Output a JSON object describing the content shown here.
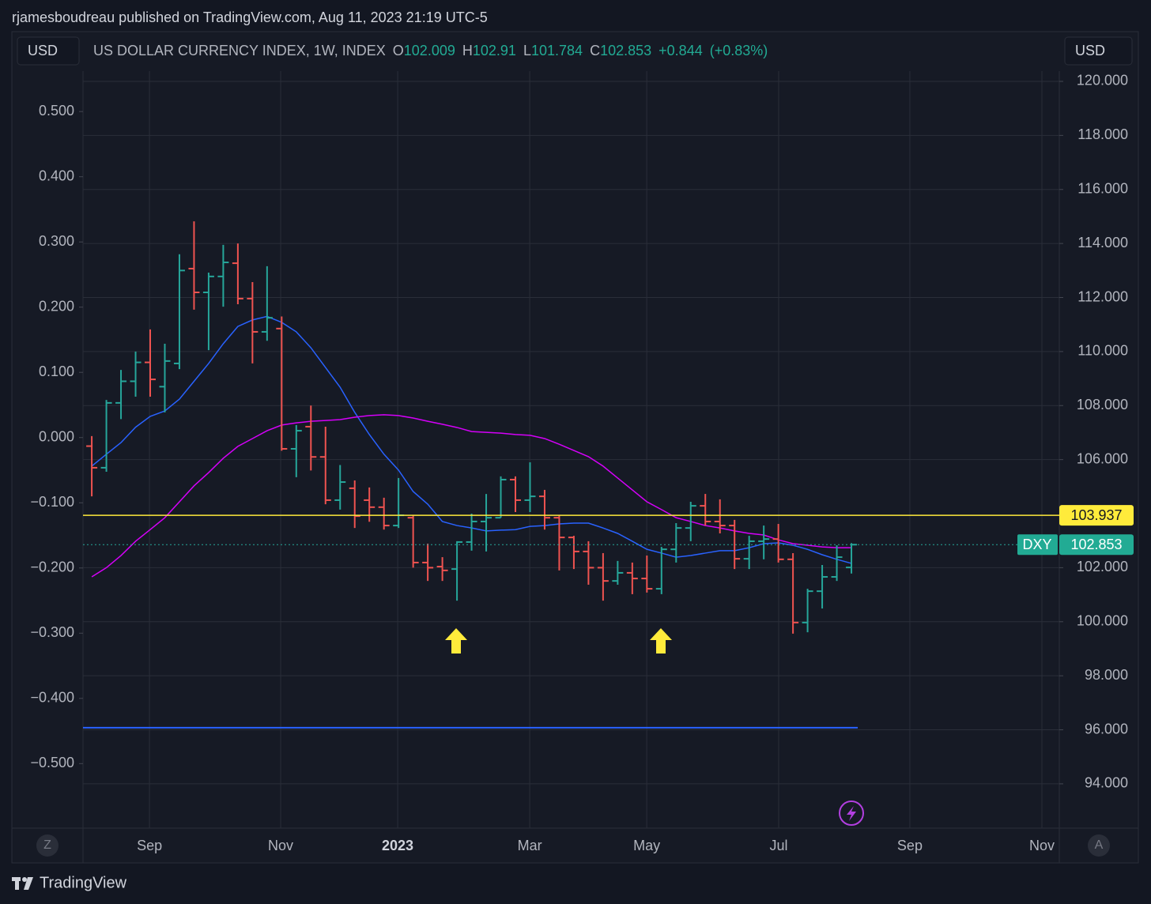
{
  "page": {
    "author_line": "rjamesboudreau published on TradingView.com, Aug 11, 2023 21:19 UTC-5",
    "currency_left": "USD",
    "currency_right": "USD",
    "scale_left_button": "Z",
    "scale_right_button": "A",
    "brand": "TradingView"
  },
  "chart_data": {
    "type": "ohlc",
    "title": "US DOLLAR CURRENCY INDEX, 1W, INDEX",
    "symbol": "DXY",
    "ohlc_letters": [
      "O",
      "H",
      "L",
      "C"
    ],
    "change_label": "+0.844",
    "change_pct_label": "(+0.83%)",
    "up_color": "#26a69a",
    "down_color": "#ef5350",
    "categories": [
      null,
      null,
      null,
      null,
      null,
      null,
      null,
      null,
      null,
      null,
      null,
      null,
      null,
      null,
      null,
      null,
      null,
      null,
      null,
      null,
      null,
      null,
      null,
      null,
      null,
      null,
      null,
      null,
      null,
      null,
      null,
      null,
      null,
      null,
      null,
      null,
      null,
      null,
      null,
      null,
      null,
      null,
      null,
      null,
      null,
      null,
      null,
      null,
      null,
      null,
      null,
      null,
      null
    ],
    "open": [
      106.5,
      105.7,
      108.1,
      108.9,
      109.6,
      108.7,
      109.56,
      113.07,
      112.19,
      112.78,
      113.27,
      111.96,
      110.73,
      110.85,
      106.4,
      107.22,
      106.1,
      104.5,
      104.94,
      104.5,
      104.24,
      103.56,
      103.85,
      102.19,
      102.04,
      101.95,
      102.95,
      103.71,
      103.85,
      105.26,
      104.5,
      104.64,
      103.85,
      103.12,
      102.6,
      102.0,
      101.51,
      101.81,
      101.6,
      101.22,
      102.68,
      103.47,
      104.29,
      103.71,
      103.56,
      102.33,
      102.98,
      103.06,
      102.31,
      99.97,
      101.13,
      101.66,
      102.009
    ],
    "high": [
      106.87,
      108.21,
      109.32,
      110.0,
      110.82,
      110.29,
      113.6,
      114.82,
      112.92,
      113.95,
      114.0,
      112.57,
      113.16,
      111.3,
      107.28,
      108.0,
      107.22,
      105.8,
      105.23,
      104.97,
      104.59,
      105.32,
      103.94,
      102.89,
      102.39,
      102.98,
      104.0,
      104.73,
      105.38,
      105.38,
      105.9,
      104.88,
      103.94,
      103.18,
      102.98,
      102.54,
      102.25,
      102.19,
      102.45,
      102.77,
      103.65,
      104.44,
      104.73,
      104.53,
      103.77,
      103.18,
      103.56,
      103.62,
      102.54,
      101.22,
      102.1,
      102.83,
      102.91
    ],
    "low": [
      104.64,
      105.55,
      107.5,
      108.33,
      108.33,
      107.75,
      109.35,
      111.55,
      110.05,
      111.66,
      111.75,
      109.56,
      110.4,
      106.33,
      105.35,
      105.6,
      104.35,
      104.15,
      103.47,
      103.7,
      103.41,
      103.47,
      102.0,
      101.51,
      101.51,
      100.78,
      102.63,
      102.6,
      103.85,
      104.06,
      104.06,
      103.41,
      101.9,
      101.95,
      101.37,
      100.78,
      101.37,
      101.02,
      101.08,
      101.02,
      102.19,
      102.98,
      103.56,
      103.27,
      101.95,
      101.95,
      102.31,
      102.19,
      99.56,
      99.61,
      100.49,
      101.51,
      101.784
    ],
    "close": [
      105.7,
      108.1,
      108.9,
      109.6,
      108.97,
      109.65,
      113.0,
      112.19,
      112.78,
      113.3,
      111.96,
      110.73,
      111.25,
      106.4,
      107.07,
      106.1,
      104.5,
      105.17,
      103.91,
      104.24,
      103.56,
      103.94,
      102.19,
      102.0,
      101.9,
      102.95,
      103.71,
      103.85,
      105.26,
      104.5,
      104.64,
      103.85,
      103.12,
      102.6,
      102.0,
      101.51,
      101.81,
      101.6,
      101.22,
      102.68,
      103.47,
      104.29,
      103.71,
      103.56,
      102.33,
      102.98,
      103.06,
      102.31,
      99.97,
      101.13,
      101.66,
      102.39,
      102.853
    ],
    "series": [
      {
        "color": "#2962ff",
        "values": [
          105.76,
          106.2,
          106.63,
          107.2,
          107.6,
          107.8,
          108.24,
          108.9,
          109.56,
          110.29,
          110.93,
          111.17,
          111.3,
          111.08,
          110.73,
          110.14,
          109.41,
          108.68,
          107.75,
          106.93,
          106.2,
          105.61,
          104.82,
          104.35,
          103.71,
          103.56,
          103.47,
          103.36,
          103.39,
          103.41,
          103.53,
          103.56,
          103.62,
          103.65,
          103.65,
          103.47,
          103.27,
          102.98,
          102.68,
          102.54,
          102.39,
          102.45,
          102.54,
          102.63,
          102.63,
          102.74,
          102.89,
          102.92,
          102.83,
          102.68,
          102.48,
          102.31,
          102.16
        ]
      },
      {
        "color": "#d500f9",
        "values": [
          101.66,
          102.0,
          102.45,
          102.98,
          103.41,
          103.85,
          104.44,
          105.03,
          105.52,
          106.05,
          106.49,
          106.78,
          107.07,
          107.28,
          107.36,
          107.42,
          107.45,
          107.48,
          107.57,
          107.63,
          107.66,
          107.63,
          107.54,
          107.42,
          107.31,
          107.19,
          107.04,
          107.01,
          106.98,
          106.93,
          106.9,
          106.78,
          106.57,
          106.34,
          106.11,
          105.76,
          105.32,
          104.88,
          104.44,
          104.15,
          103.85,
          103.71,
          103.56,
          103.47,
          103.36,
          103.27,
          103.21,
          103.03,
          102.89,
          102.83,
          102.77,
          102.74,
          102.74
        ]
      }
    ],
    "price_line": {
      "value": 103.937,
      "color": "#ffeb3b"
    },
    "indicator_line": {
      "value": -0.445,
      "color": "#2962ff",
      "axis": "y2"
    },
    "xlim": [
      -0.6,
      66.23
    ],
    "xticks": [
      {
        "value": 3.95,
        "label": "Sep"
      },
      {
        "value": 12.93,
        "label": "Nov"
      },
      {
        "value": 20.94,
        "label": "2023"
      },
      {
        "value": 29.98,
        "label": "Mar"
      },
      {
        "value": 37.99,
        "label": "May"
      },
      {
        "value": 47.02,
        "label": "Jul"
      },
      {
        "value": 56.0,
        "label": "Sep"
      },
      {
        "value": 65.04,
        "label": "Nov"
      }
    ],
    "ylim": [
      92.36,
      120.38
    ],
    "yticks": [
      {
        "value": 120,
        "label": "120.000"
      },
      {
        "value": 118,
        "label": "118.000"
      },
      {
        "value": 116,
        "label": "116.000"
      },
      {
        "value": 114,
        "label": "114.000"
      },
      {
        "value": 112,
        "label": "112.000"
      },
      {
        "value": 110,
        "label": "110.000"
      },
      {
        "value": 108,
        "label": "108.000"
      },
      {
        "value": 106,
        "label": "106.000"
      },
      {
        "value": 102,
        "label": "102.000"
      },
      {
        "value": 100,
        "label": "100.000"
      },
      {
        "value": 98,
        "label": "98.000"
      },
      {
        "value": 96,
        "label": "96.000"
      },
      {
        "value": 94,
        "label": "94.000"
      }
    ],
    "y2lim": [
      -0.599,
      0.562
    ],
    "y2ticks": [
      {
        "value": 0.5,
        "label": "0.500"
      },
      {
        "value": 0.4,
        "label": "0.400"
      },
      {
        "value": 0.3,
        "label": "0.300"
      },
      {
        "value": 0.2,
        "label": "0.200"
      },
      {
        "value": 0.1,
        "label": "0.100"
      },
      {
        "value": 0,
        "label": "0.000"
      },
      {
        "value": -0.1,
        "label": "−0.100"
      },
      {
        "value": -0.2,
        "label": "−0.200"
      },
      {
        "value": -0.3,
        "label": "−0.300"
      },
      {
        "value": -0.4,
        "label": "−0.400"
      },
      {
        "value": -0.5,
        "label": "−0.500"
      }
    ],
    "grid": true
  }
}
